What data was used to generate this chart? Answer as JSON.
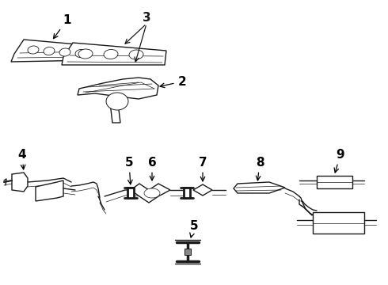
{
  "bg_color": "#ffffff",
  "line_color": "#1a1a1a",
  "label_color": "#000000",
  "fontsize": 11,
  "lw": 1.0,
  "figsize": [
    4.9,
    3.6
  ],
  "dpi": 100
}
